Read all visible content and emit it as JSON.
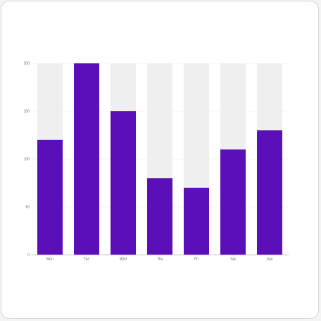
{
  "chart_data": {
    "type": "bar",
    "categories": [
      "Mon",
      "Tue",
      "Wed",
      "Thu",
      "Fri",
      "Sat",
      "Sun"
    ],
    "values": [
      120,
      200,
      150,
      80,
      70,
      110,
      130
    ],
    "background_values": [
      200,
      200,
      200,
      200,
      200,
      200,
      200
    ],
    "ylim": [
      0,
      200
    ],
    "yticks": [
      "0",
      "50",
      "100",
      "150",
      "200"
    ],
    "grid": true,
    "legend": "none"
  },
  "colors": {
    "bar": "#5b0fb8",
    "bar_background": "#efefef",
    "grid": "#eeeeee",
    "axis": "#bdbdbd"
  }
}
